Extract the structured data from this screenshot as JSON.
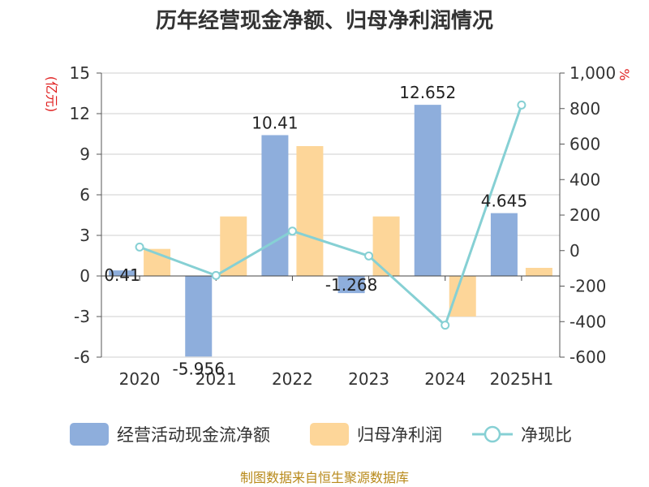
{
  "title": "历年经营现金净额、归母净利润情况",
  "source": "制图数据来自恒生聚源数据库",
  "chart_data": {
    "type": "bar",
    "categories": [
      "2020",
      "2021",
      "2022",
      "2023",
      "2024",
      "2025H1"
    ],
    "left_axis": {
      "unit": "(亿元)",
      "ylim": [
        -6,
        15
      ],
      "ticks": [
        "-6",
        "-3",
        "0",
        "3",
        "6",
        "9",
        "12",
        "15"
      ],
      "tick_values": [
        -6,
        -3,
        0,
        3,
        6,
        9,
        12,
        15
      ]
    },
    "right_axis": {
      "unit": "%",
      "ylim": [
        -600,
        1000
      ],
      "ticks": [
        "-600",
        "-400",
        "-200",
        "0",
        "200",
        "400",
        "600",
        "800",
        "1,000"
      ],
      "tick_values": [
        -600,
        -400,
        -200,
        0,
        200,
        400,
        600,
        800,
        1000
      ]
    },
    "grid": true,
    "legend_position": "bottom",
    "series": [
      {
        "name": "经营活动现金流净额",
        "type": "bar",
        "axis": "left",
        "color": "#8eaedc",
        "values": [
          0.41,
          -5.956,
          10.41,
          -1.268,
          12.652,
          4.645
        ],
        "labels": [
          "0.41",
          "-5.956",
          "10.41",
          "-1.268",
          "12.652",
          "4.645"
        ]
      },
      {
        "name": "归母净利润",
        "type": "bar",
        "axis": "left",
        "color": "#fdd699",
        "values": [
          2.0,
          4.4,
          9.6,
          4.4,
          -3.0,
          0.6
        ]
      },
      {
        "name": "净现比",
        "type": "line",
        "axis": "right",
        "color": "#86d0d4",
        "values": [
          20,
          -140,
          110,
          -30,
          -420,
          820
        ]
      }
    ]
  }
}
